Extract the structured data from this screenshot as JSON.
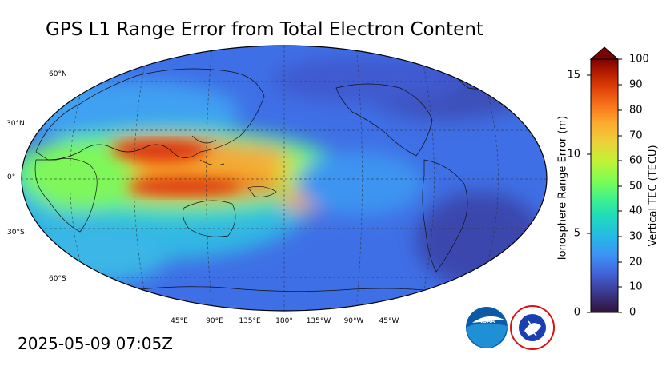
{
  "title": "GPS L1 Range Error from Total Electron Content",
  "timestamp": "2025-05-09 07:05Z",
  "map": {
    "lat_labels": [
      "60°N",
      "30°N",
      "0°",
      "30°S",
      "60°S"
    ],
    "lon_labels": [
      "45°E",
      "90°E",
      "135°E",
      "180°",
      "135°W",
      "90°W",
      "45°W"
    ]
  },
  "colorbar": {
    "left_label": "Ionosphere Range Error (m)",
    "right_label": "Vertical TEC (TECU)",
    "left_ticks": [
      "0",
      "5",
      "10",
      "15"
    ],
    "right_ticks": [
      "0",
      "10",
      "20",
      "30",
      "40",
      "50",
      "60",
      "70",
      "80",
      "90",
      "100"
    ],
    "colors": [
      "#30123b",
      "#4145ab",
      "#4675ed",
      "#39a2fc",
      "#1bcfd4",
      "#24eca6",
      "#61fc6c",
      "#a4fc3b",
      "#d1e834",
      "#f3c63a",
      "#fe9b2d",
      "#f36315",
      "#d93806",
      "#b11901",
      "#7a0402"
    ]
  },
  "logos": [
    "NOAA",
    "NATIONAL WEATHER SERVICE"
  ]
}
